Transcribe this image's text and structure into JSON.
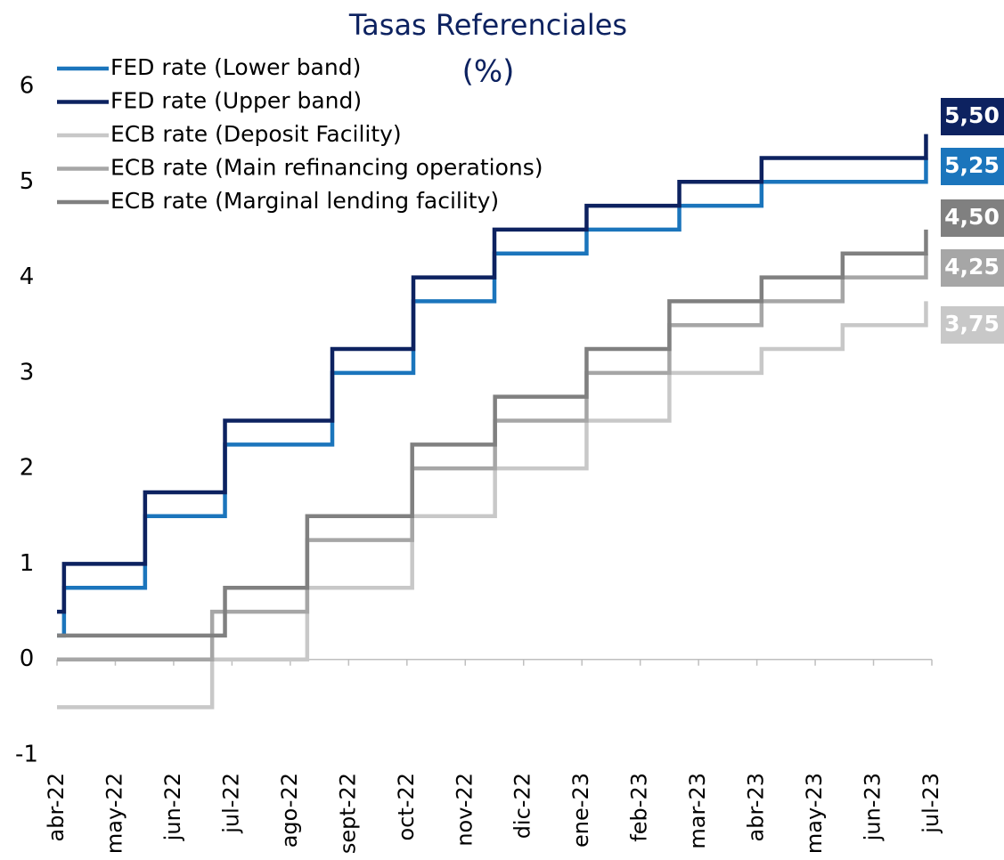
{
  "chart_data": {
    "type": "step",
    "title": "Tasas Referenciales",
    "subtitle": "(%)",
    "xlim": [
      0,
      15
    ],
    "xticks": [
      {
        "value": 0,
        "label": "abr-22"
      },
      {
        "value": 1,
        "label": "may-22"
      },
      {
        "value": 2,
        "label": "jun-22"
      },
      {
        "value": 3,
        "label": "jul-22"
      },
      {
        "value": 4,
        "label": "ago-22"
      },
      {
        "value": 5,
        "label": "sept-22"
      },
      {
        "value": 6,
        "label": "oct-22"
      },
      {
        "value": 7,
        "label": "nov-22"
      },
      {
        "value": 8,
        "label": "dic-22"
      },
      {
        "value": 9,
        "label": "ene-23"
      },
      {
        "value": 10,
        "label": "feb-23"
      },
      {
        "value": 11,
        "label": "mar-23"
      },
      {
        "value": 12,
        "label": "abr-23"
      },
      {
        "value": 13,
        "label": "may-23"
      },
      {
        "value": 14,
        "label": "jun-23"
      },
      {
        "value": 15,
        "label": "jul-23"
      }
    ],
    "ylim": [
      -1,
      6
    ],
    "yticks": [
      -1,
      0,
      1,
      2,
      3,
      4,
      5,
      6
    ],
    "legend": "top-left",
    "series": [
      {
        "name": "FED rate (Lower band)",
        "color": "#1b75bc",
        "end_label": "5,25",
        "x": [
          0,
          0.12,
          1.51,
          2.88,
          4.72,
          6.11,
          7.5,
          9.08,
          10.67,
          12.08,
          14.9
        ],
        "values": [
          0.25,
          0.75,
          1.5,
          2.25,
          3.0,
          3.75,
          4.25,
          4.5,
          4.75,
          5.0,
          5.25
        ]
      },
      {
        "name": "FED rate (Upper band)",
        "color": "#0d2260",
        "end_label": "5,50",
        "x": [
          0,
          0.12,
          1.51,
          2.88,
          4.72,
          6.11,
          7.5,
          9.08,
          10.67,
          12.08,
          14.9
        ],
        "values": [
          0.5,
          1.0,
          1.75,
          2.5,
          3.25,
          4.0,
          4.5,
          4.75,
          5.0,
          5.25,
          5.5
        ]
      },
      {
        "name": "ECB rate (Deposit Facility)",
        "color": "#c8c8c8",
        "end_label": "3,75",
        "x": [
          0,
          2.66,
          4.29,
          6.09,
          7.51,
          9.08,
          10.5,
          12.08,
          13.47,
          14.9
        ],
        "values": [
          -0.5,
          0,
          0.75,
          1.5,
          2.0,
          2.5,
          3.0,
          3.25,
          3.5,
          3.75
        ]
      },
      {
        "name": "ECB rate (Main refinancing operations)",
        "color": "#a6a6a6",
        "end_label": "4,25",
        "x": [
          0,
          2.66,
          4.29,
          6.09,
          7.51,
          9.08,
          10.5,
          12.08,
          13.47,
          14.9
        ],
        "values": [
          0,
          0.5,
          1.25,
          2.0,
          2.5,
          3.0,
          3.5,
          3.75,
          4.0,
          4.25
        ]
      },
      {
        "name": "ECB rate (Marginal lending facility)",
        "color": "#808080",
        "end_label": "4,50",
        "x": [
          0,
          2.88,
          4.29,
          6.09,
          7.51,
          9.08,
          10.5,
          12.08,
          13.47,
          14.9
        ],
        "values": [
          0.25,
          0.75,
          1.5,
          2.25,
          2.75,
          3.25,
          3.75,
          4.0,
          4.25,
          4.5
        ]
      }
    ]
  }
}
